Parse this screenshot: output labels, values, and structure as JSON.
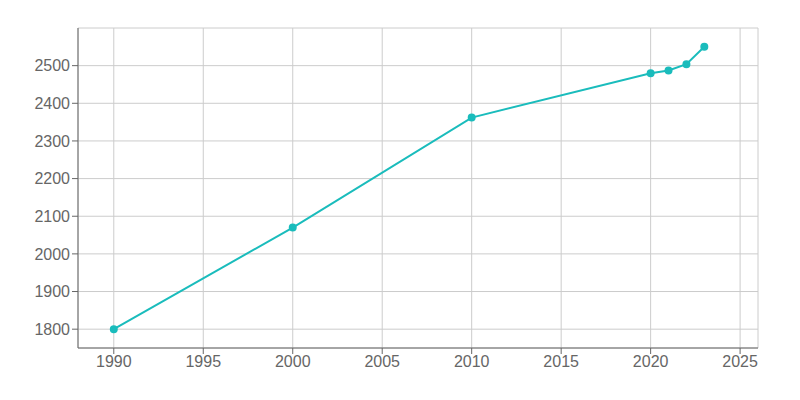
{
  "chart_data": {
    "type": "line",
    "x": [
      1990,
      2000,
      2010,
      2020,
      2021,
      2022,
      2023
    ],
    "values": [
      1800,
      2070,
      2362,
      2480,
      2487,
      2504,
      2550
    ],
    "color": "#1abcbc",
    "marker": "circle",
    "xlim": [
      1988,
      2026
    ],
    "ylim": [
      1750,
      2600
    ],
    "xticks": [
      1990,
      1995,
      2000,
      2005,
      2010,
      2015,
      2020,
      2025
    ],
    "yticks": [
      1800,
      1900,
      2000,
      2100,
      2200,
      2300,
      2400,
      2500
    ],
    "grid": true
  }
}
